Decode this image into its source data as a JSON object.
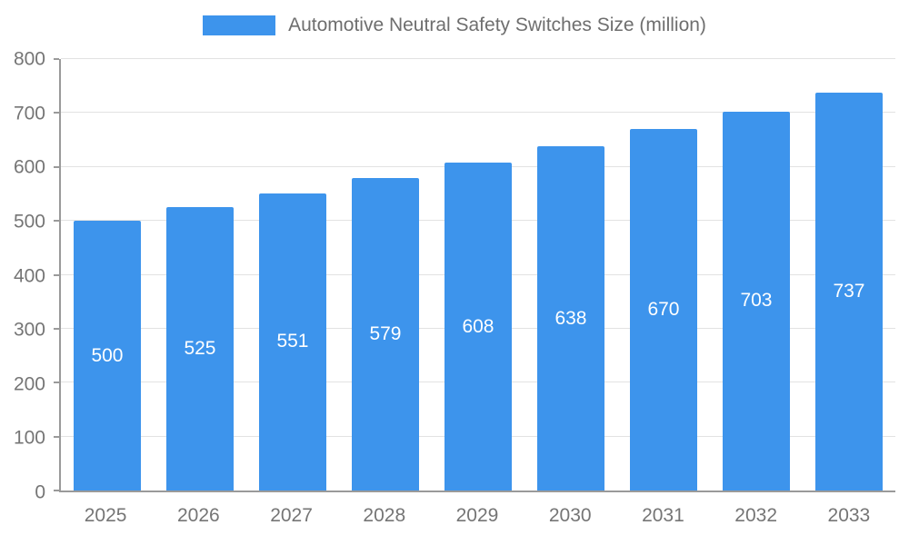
{
  "chart_data": {
    "type": "bar",
    "title": "Automotive Neutral Safety Switches Size (million)",
    "categories": [
      "2025",
      "2026",
      "2027",
      "2028",
      "2029",
      "2030",
      "2031",
      "2032",
      "2033"
    ],
    "values": [
      500,
      525,
      551,
      579,
      608,
      638,
      670,
      703,
      737
    ],
    "xlabel": "",
    "ylabel": "",
    "ylim": [
      0,
      800
    ],
    "ytick_step": 100,
    "grid": true,
    "legend_position": "top",
    "legend_label": "Automotive Neutral Safety Switches Size (million)",
    "colors": {
      "bar": "#3d94ec",
      "bar_value_text": "#ffffff",
      "axis_text": "#757575",
      "legend_text": "#6e6e6e",
      "gridline": "#e2e2e2",
      "axis_line": "#9a9a9a",
      "background": "#ffffff"
    }
  }
}
